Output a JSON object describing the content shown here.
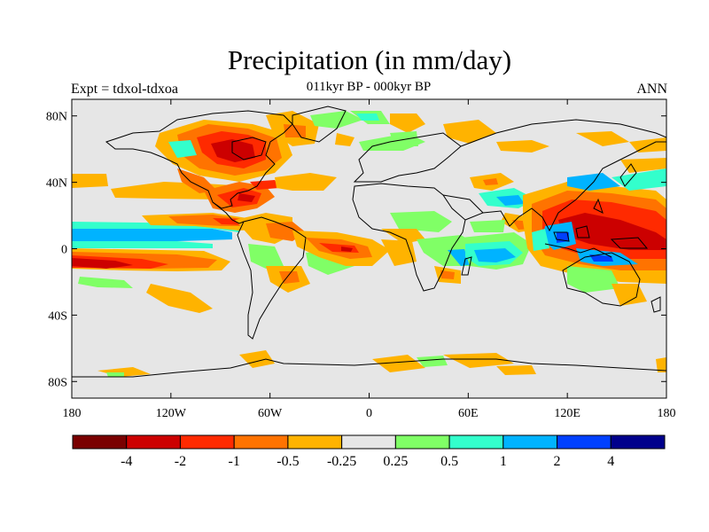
{
  "header": {
    "title": "Precipitation (in mm/day)",
    "subtitle": "011kyr BP - 000kyr BP",
    "left_label": "Expt = tdxol-tdxoa",
    "right_label": "ANN"
  },
  "map": {
    "lon_range": [
      -180,
      180
    ],
    "lat_range": [
      -90,
      90
    ],
    "background_color": "#e6e6e6",
    "coastline_color": "#000000",
    "lat_ticks": [
      {
        "label": "80N",
        "lat": 80
      },
      {
        "label": "40N",
        "lat": 40
      },
      {
        "label": "0",
        "lat": 0
      },
      {
        "label": "40S",
        "lat": -40
      },
      {
        "label": "80S",
        "lat": -80
      }
    ],
    "lon_ticks": [
      {
        "label": "180",
        "lon": -180
      },
      {
        "label": "120W",
        "lon": -120
      },
      {
        "label": "60W",
        "lon": -60
      },
      {
        "label": "0",
        "lon": 0
      },
      {
        "label": "60E",
        "lon": 60
      },
      {
        "label": "120E",
        "lon": 120
      },
      {
        "label": "180",
        "lon": 180
      }
    ]
  },
  "colorbar": {
    "colors": [
      "#7a0000",
      "#cc0000",
      "#ff2a00",
      "#ff7300",
      "#ffb300",
      "#e6e6e6",
      "#80ff66",
      "#33ffcc",
      "#00b3ff",
      "#0040ff",
      "#00008c"
    ],
    "labels": [
      "-4",
      "-2",
      "-1",
      "-0.5",
      "-0.25",
      "0.25",
      "0.5",
      "1",
      "2",
      "4"
    ]
  }
}
